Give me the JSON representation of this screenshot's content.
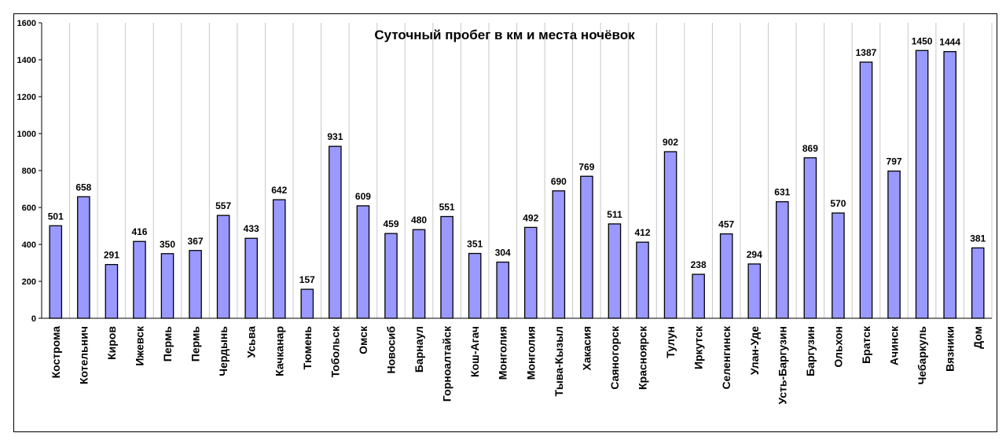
{
  "chart_data": {
    "type": "bar",
    "title": "Суточный пробег в км и места ночёвок",
    "xlabel": "",
    "ylabel": "",
    "ylim": [
      0,
      1600
    ],
    "yticks": [
      "0",
      "200",
      "400",
      "600",
      "800",
      "1000",
      "1200",
      "1400",
      "1600"
    ],
    "grid": "vertical",
    "legend": "none",
    "bar_color": "#9999ff",
    "bar_border": "#000000",
    "categories": [
      "Кострома",
      "Котельнич",
      "Киров",
      "Ижевск",
      "Пермь",
      "Пермь",
      "Чердынь",
      "Усьва",
      "Качканар",
      "Тюмень",
      "Тобольск",
      "Омск",
      "Новосиб",
      "Барнаул",
      "Горноалтайск",
      "Кош-Агач",
      "Монголия",
      "Монголия",
      "Тыва-Кызыл",
      "Хакасия",
      "Саяногорск",
      "Красноярск",
      "Тулун",
      "Иркутск",
      "Селенгинск",
      "Улан-Уде",
      "Усть-Баргузин",
      "Баргузин",
      "Ольхон",
      "Братск",
      "Ачинск",
      "Чебаркуль",
      "Вязники",
      "Дом"
    ],
    "values": [
      501,
      658,
      291,
      416,
      350,
      367,
      557,
      433,
      642,
      157,
      931,
      609,
      459,
      480,
      551,
      351,
      304,
      492,
      690,
      769,
      511,
      412,
      902,
      238,
      457,
      294,
      631,
      869,
      570,
      1387,
      797,
      1450,
      1444,
      381
    ]
  }
}
